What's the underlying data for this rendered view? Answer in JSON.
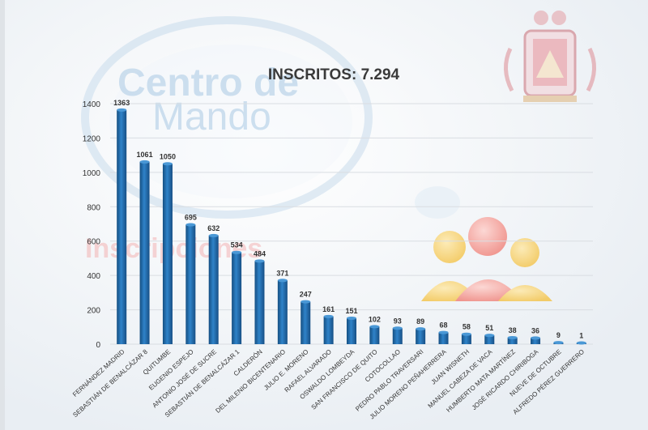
{
  "watermark": {
    "line1": "Centro de",
    "line2": "Mando",
    "faded_word": "Inscripciones"
  },
  "colors": {
    "bar": "#1f6fb3",
    "bar_light": "#4a98d6",
    "bar_dark": "#154f82",
    "grid": "#d9dde2",
    "axis_text": "#333333",
    "title": "#3a3a3a"
  },
  "chart_data": {
    "type": "bar",
    "title": "INSCRITOS: 7.294",
    "xlabel": "",
    "ylabel": "",
    "ylim": [
      0,
      1400
    ],
    "yticks": [
      0,
      200,
      400,
      600,
      800,
      1000,
      1200,
      1400
    ],
    "grid": true,
    "categories": [
      "FERNÁNDEZ MADRID",
      "SEBASTIÁN DE BENALCÁZAR 8",
      "QUITUMBE",
      "EUGENIO ESPEJO",
      "ANTONIO JOSÉ DE SUCRE",
      "SEBASTIÁN DE BENALCÁZAR 1",
      "CALDERÓN",
      "DEL MILENIO BICENTENARIO",
      "JULIO E. MORENO",
      "RAFAEL ALVARADO",
      "OSWALDO LOMBEYDA",
      "SAN FRANCISCO DE QUITO",
      "COTOCOLLAO",
      "PEDRO PABLO TRAVERSARI",
      "JULIO MORENO PEÑAHERRERA",
      "JUAN WISNETH",
      "MANUEL CABEZA DE VACA",
      "HUMBERTO MATA MARTÍNEZ",
      "JOSÉ RICARDO CHIRIBOGA",
      "NUEVE DE OCTUBRE",
      "ALFREDO PÉREZ GUERRERO"
    ],
    "values": [
      1363,
      1061,
      1050,
      695,
      632,
      534,
      484,
      371,
      247,
      161,
      151,
      102,
      93,
      89,
      68,
      58,
      51,
      38,
      36,
      9,
      1
    ],
    "value_labels": [
      "1363",
      "1061",
      "1050",
      "695",
      "632",
      "534",
      "484",
      "371",
      "247",
      "161",
      "151",
      "102",
      "93",
      "89",
      "68",
      "58",
      "51",
      "38",
      "36",
      "9",
      "1"
    ]
  }
}
